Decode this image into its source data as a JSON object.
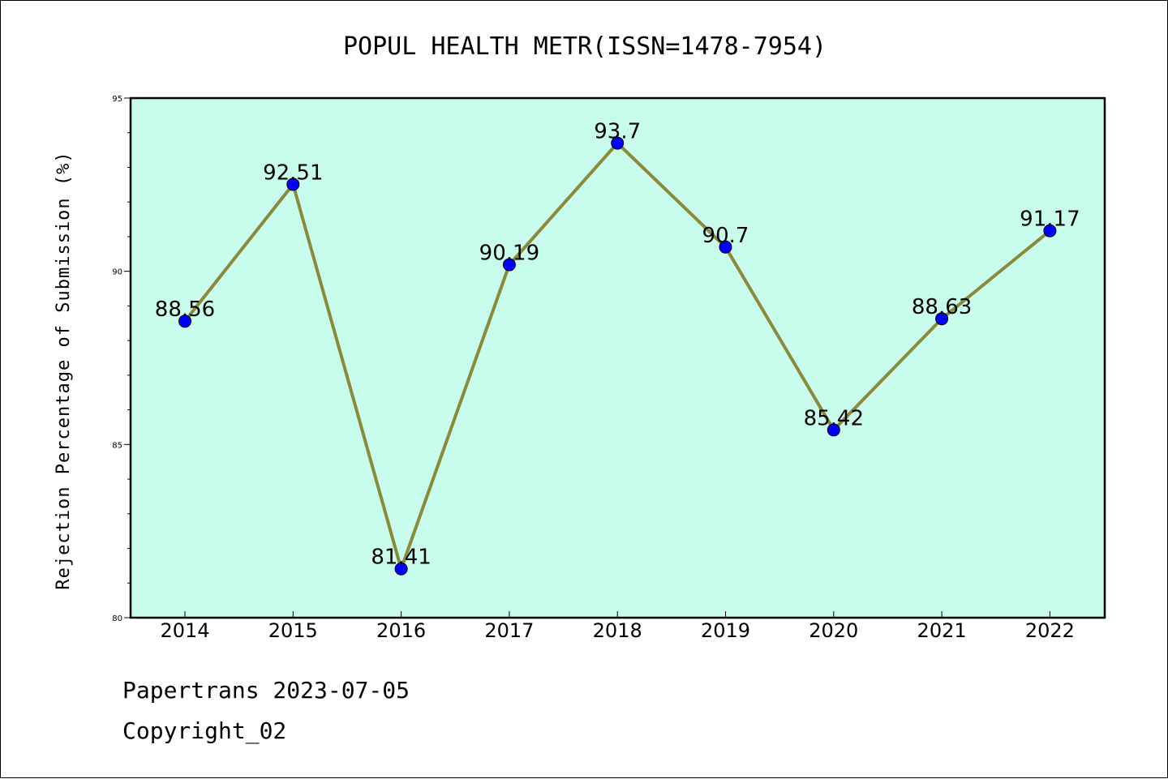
{
  "chart_data": {
    "type": "line",
    "title": "POPUL HEALTH METR(ISSN=1478-7954)",
    "xlabel": "",
    "ylabel": "Rejection Percentage of Submission (%)",
    "categories": [
      "2014",
      "2015",
      "2016",
      "2017",
      "2018",
      "2019",
      "2020",
      "2021",
      "2022"
    ],
    "values": [
      88.56,
      92.51,
      81.41,
      90.19,
      93.7,
      90.7,
      85.42,
      88.63,
      91.17
    ],
    "data_labels": [
      "88.56",
      "92.51",
      "81.41",
      "90.19",
      "93.7",
      "90.7",
      "85.42",
      "88.63",
      "91.17"
    ],
    "ylim": [
      80,
      95
    ],
    "yticks": [
      80,
      85,
      90,
      95
    ],
    "grid": false,
    "plot_background": "#c8fcec",
    "line_color": "#8a8a3a",
    "marker_color": "#0000ff"
  },
  "footer": {
    "line1": "Papertrans 2023-07-05",
    "line2": "Copyright_02"
  }
}
